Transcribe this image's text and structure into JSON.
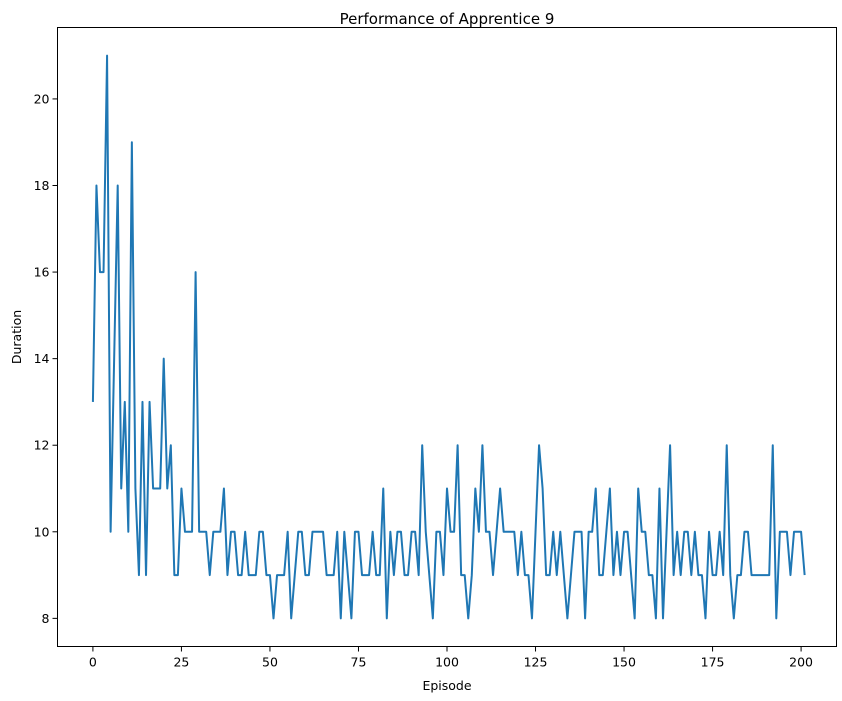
{
  "chart_data": {
    "type": "line",
    "title": "Performance of Apprentice 9",
    "xlabel": "Episode",
    "ylabel": "Duration",
    "xlim": [
      -10,
      210
    ],
    "ylim": [
      7.35,
      21.65
    ],
    "xticks": [
      0,
      25,
      50,
      75,
      100,
      125,
      150,
      175,
      200
    ],
    "yticks": [
      8,
      10,
      12,
      14,
      16,
      18,
      20
    ],
    "xtick_labels": [
      "0",
      "25",
      "50",
      "75",
      "100",
      "125",
      "150",
      "175",
      "200"
    ],
    "ytick_labels": [
      "8",
      "10",
      "12",
      "14",
      "16",
      "18",
      "20"
    ],
    "grid": false,
    "series": [
      {
        "color": "#1f77b4",
        "values": [
          13,
          18,
          16,
          16,
          21,
          10,
          14,
          18,
          11,
          13,
          10,
          19,
          11,
          9,
          13,
          9,
          13,
          11,
          11,
          11,
          14,
          11,
          12,
          9,
          9,
          11,
          10,
          10,
          10,
          16,
          10,
          10,
          10,
          9,
          10,
          10,
          10,
          11,
          9,
          10,
          10,
          9,
          9,
          10,
          9,
          9,
          9,
          10,
          10,
          9,
          9,
          8,
          9,
          9,
          9,
          10,
          8,
          9,
          10,
          10,
          9,
          9,
          10,
          10,
          10,
          10,
          9,
          9,
          9,
          10,
          8,
          10,
          9,
          8,
          10,
          10,
          9,
          9,
          9,
          10,
          9,
          9,
          11,
          8,
          10,
          9,
          10,
          10,
          9,
          9,
          10,
          10,
          9,
          12,
          10,
          9,
          8,
          10,
          10,
          9,
          11,
          10,
          10,
          12,
          9,
          9,
          8,
          9,
          11,
          10,
          12,
          10,
          10,
          9,
          10,
          11,
          10,
          10,
          10,
          10,
          9,
          10,
          9,
          9,
          8,
          10,
          12,
          11,
          9,
          9,
          10,
          9,
          10,
          9,
          8,
          9,
          10,
          10,
          10,
          8,
          10,
          10,
          11,
          9,
          9,
          10,
          11,
          9,
          10,
          9,
          10,
          10,
          9,
          8,
          11,
          10,
          10,
          9,
          9,
          8,
          11,
          8,
          10,
          12,
          9,
          10,
          9,
          10,
          10,
          9,
          10,
          9,
          9,
          8,
          10,
          9,
          9,
          10,
          9,
          12,
          9,
          8,
          9,
          9,
          10,
          10,
          9,
          9,
          9,
          9,
          9,
          9,
          12,
          8,
          10,
          10,
          10,
          9,
          10,
          10,
          10,
          9
        ]
      }
    ]
  }
}
